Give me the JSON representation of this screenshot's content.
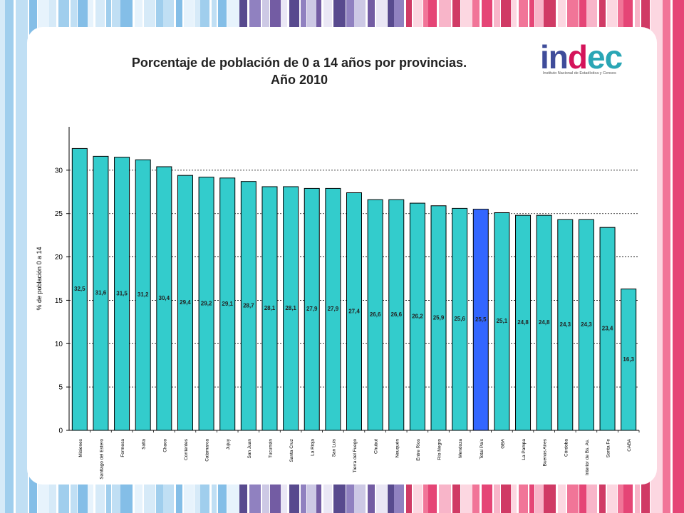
{
  "header": {
    "title_line1": "Porcentaje de población de 0 a 14 años por provincias.",
    "title_line2": "Año 2010"
  },
  "logo": {
    "word_part1": "in",
    "word_part2": "d",
    "word_part3": "ec",
    "subtitle": "Instituto Nacional de Estadística y Censos"
  },
  "colors": {
    "bar": "#33CCCC",
    "bar_highlight": "#3366FF",
    "bar_stroke": "#000000",
    "logo_in": "#3F4C9A",
    "logo_d": "#D4145A",
    "logo_ec": "#2AA6B5"
  },
  "chart_data": {
    "type": "bar",
    "title": "",
    "xlabel": "",
    "ylabel": "% de población 0 a 14",
    "ylim": [
      0,
      35
    ],
    "yticks": [
      "0",
      "5",
      "10",
      "15",
      "20",
      "25",
      "30"
    ],
    "grid": "horizontal dashed",
    "legend": "none",
    "highlight": "Total País",
    "categories": [
      "Misiones",
      "Santiago del Estero",
      "Formosa",
      "Salta",
      "Chaco",
      "Corrientes",
      "Catamarca",
      "Jujuy",
      "San Juan",
      "Tucumán",
      "Santa Cruz",
      "La Rioja",
      "San Luis",
      "Tierra del Fuego",
      "Chubut",
      "Neuquén",
      "Entre Ríos",
      "Río Negro",
      "Mendoza",
      "Total País",
      "GBA",
      "La Pampa",
      "Buenos Aires",
      "Córdoba",
      "Interior de Bs. As.",
      "Santa Fe",
      "CABA"
    ],
    "values": [
      32.5,
      31.6,
      31.5,
      31.2,
      30.4,
      29.4,
      29.2,
      29.1,
      28.7,
      28.1,
      28.1,
      27.9,
      27.9,
      27.4,
      26.6,
      26.6,
      26.2,
      25.9,
      25.6,
      25.5,
      25.1,
      24.8,
      24.8,
      24.3,
      24.3,
      23.4,
      16.3
    ],
    "value_labels": [
      "32,5",
      "31,6",
      "31,5",
      "31,2",
      "30,4",
      "29,4",
      "29,2",
      "29,1",
      "28,7",
      "28,1",
      "28,1",
      "27,9",
      "27,9",
      "27,4",
      "26,6",
      "26,6",
      "26,2",
      "25,9",
      "25,6",
      "25,5",
      "25,1",
      "24,8",
      "24,8",
      "24,3",
      "24,3",
      "23,4",
      "16,3"
    ]
  }
}
